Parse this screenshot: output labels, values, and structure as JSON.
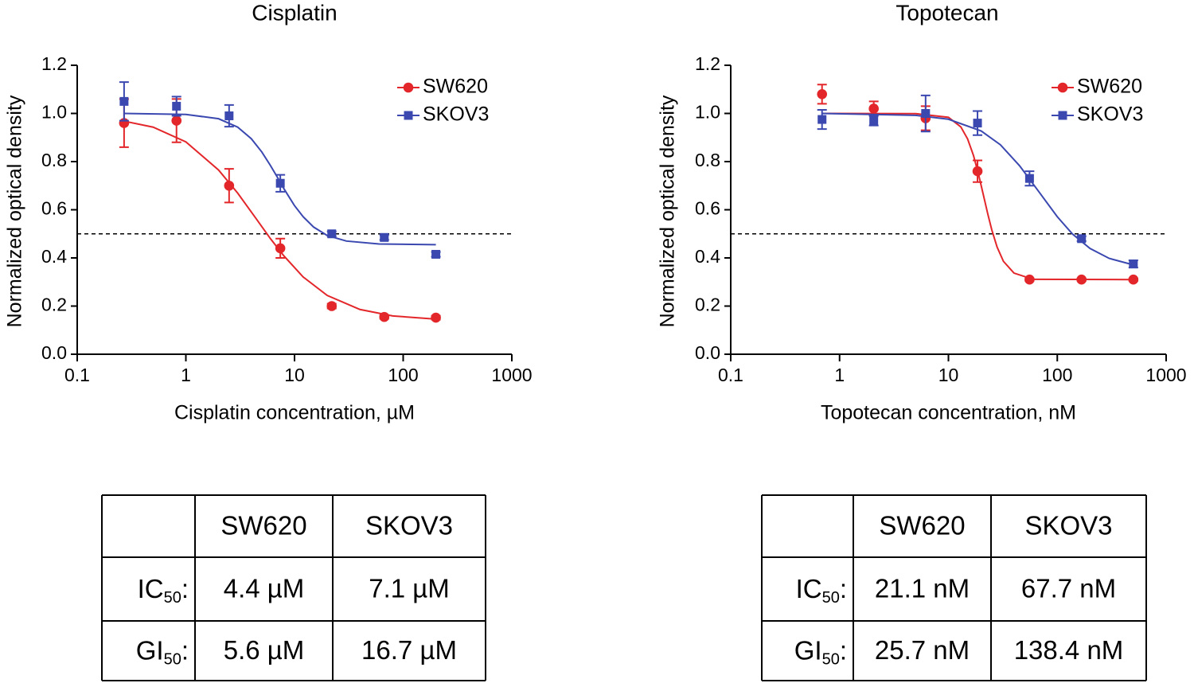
{
  "chart_data": [
    {
      "type": "scatter",
      "title": "Cisplatin",
      "x_label": "Cisplatin concentration, µM",
      "y_label": "Normalized optical density",
      "x_scale": "log",
      "xlim": [
        0.1,
        1000
      ],
      "xticks": [
        0.1,
        1,
        10,
        100,
        1000
      ],
      "ylim": [
        0,
        1.2
      ],
      "yticks": [
        {
          "value": 0,
          "label": "0.0"
        },
        0.2,
        0.4,
        0.6,
        0.8,
        {
          "value": 1,
          "label": "1.0"
        },
        1.2
      ],
      "reference_line": 0.5,
      "legend": "top-right",
      "x": [
        0.27,
        0.82,
        2.5,
        7.4,
        22,
        67,
        200
      ],
      "series": [
        {
          "name": "SW620",
          "color": "#e3262a",
          "marker": "circle",
          "values": [
            0.96,
            0.97,
            0.7,
            0.44,
            0.2,
            0.155,
            0.152
          ],
          "errors": [
            0.1,
            0.09,
            0.07,
            0.04,
            0.01,
            0.008,
            0.008
          ],
          "fit": {
            "x": [
              0.27,
              0.5,
              1,
              2,
              3,
              4.4,
              6,
              8,
              12,
              20,
              40,
              80,
              200
            ],
            "y": [
              0.968,
              0.943,
              0.882,
              0.765,
              0.669,
              0.565,
              0.48,
              0.408,
              0.321,
              0.244,
              0.186,
              0.159,
              0.146
            ]
          }
        },
        {
          "name": "SKOV3",
          "color": "#3a48b0",
          "marker": "square",
          "values": [
            1.05,
            1.03,
            0.99,
            0.71,
            0.5,
            0.485,
            0.415
          ],
          "errors": [
            0.08,
            0.04,
            0.045,
            0.035,
            0.01,
            0.01,
            0.01
          ],
          "fit": {
            "x": [
              0.27,
              1,
              2,
              3,
              4,
              5,
              6,
              7.1,
              8,
              10,
              12,
              15,
              20,
              30,
              60,
              200
            ],
            "y": [
              1.0,
              0.996,
              0.978,
              0.943,
              0.895,
              0.84,
              0.784,
              0.728,
              0.687,
              0.617,
              0.571,
              0.528,
              0.493,
              0.47,
              0.458,
              0.455
            ]
          }
        }
      ]
    },
    {
      "type": "scatter",
      "title": "Topotecan",
      "x_label": "Topotecan concentration, nM",
      "y_label": "Normalized optical density",
      "x_scale": "log",
      "xlim": [
        0.1,
        1000
      ],
      "xticks": [
        0.1,
        1,
        10,
        100,
        1000
      ],
      "ylim": [
        0,
        1.2
      ],
      "yticks": [
        {
          "value": 0,
          "label": "0.0"
        },
        0.2,
        0.4,
        0.6,
        0.8,
        {
          "value": 1,
          "label": "1.0"
        },
        1.2
      ],
      "reference_line": 0.5,
      "legend": "top-right",
      "x": [
        0.69,
        2.06,
        6.17,
        18.5,
        55.6,
        167,
        500
      ],
      "series": [
        {
          "name": "SW620",
          "color": "#e3262a",
          "marker": "circle",
          "values": [
            1.08,
            1.02,
            0.98,
            0.76,
            0.31,
            0.31,
            0.31
          ],
          "errors": [
            0.04,
            0.03,
            0.05,
            0.045,
            0.005,
            0.005,
            0.005
          ],
          "fit": {
            "x": [
              0.69,
              5,
              10,
              13,
              15,
              17,
              19,
              21.1,
              23,
              25,
              28,
              32,
              40,
              60,
              500
            ],
            "y": [
              1.0,
              0.999,
              0.984,
              0.944,
              0.894,
              0.825,
              0.743,
              0.655,
              0.582,
              0.517,
              0.445,
              0.386,
              0.337,
              0.311,
              0.31
            ]
          }
        },
        {
          "name": "SKOV3",
          "color": "#3a48b0",
          "marker": "square",
          "values": [
            0.975,
            0.97,
            1.0,
            0.96,
            0.73,
            0.48,
            0.375
          ],
          "errors": [
            0.04,
            0.02,
            0.075,
            0.05,
            0.03,
            0.01,
            0.015
          ],
          "fit": {
            "x": [
              0.69,
              5,
              10,
              20,
              30,
              45,
              67.7,
              100,
              138,
              200,
              300,
              500
            ],
            "y": [
              1.0,
              0.992,
              0.976,
              0.927,
              0.87,
              0.783,
              0.675,
              0.571,
              0.499,
              0.439,
              0.398,
              0.371
            ]
          }
        }
      ]
    }
  ],
  "tables": [
    {
      "columns": [
        "SW620",
        "SKOV3"
      ],
      "rows": [
        {
          "label": "IC",
          "sub": "50",
          "colon": ":",
          "cells": [
            "4.4 µM",
            "7.1 µM"
          ]
        },
        {
          "label": "GI",
          "sub": "50",
          "colon": ":",
          "cells": [
            "5.6 µM",
            "16.7 µM"
          ]
        }
      ]
    },
    {
      "columns": [
        "SW620",
        "SKOV3"
      ],
      "rows": [
        {
          "label": "IC",
          "sub": "50",
          "colon": ":",
          "cells": [
            "21.1 nM",
            "67.7 nM"
          ]
        },
        {
          "label": "GI",
          "sub": "50",
          "colon": ":",
          "cells": [
            "25.7 nM",
            "138.4 nM"
          ]
        }
      ]
    }
  ]
}
